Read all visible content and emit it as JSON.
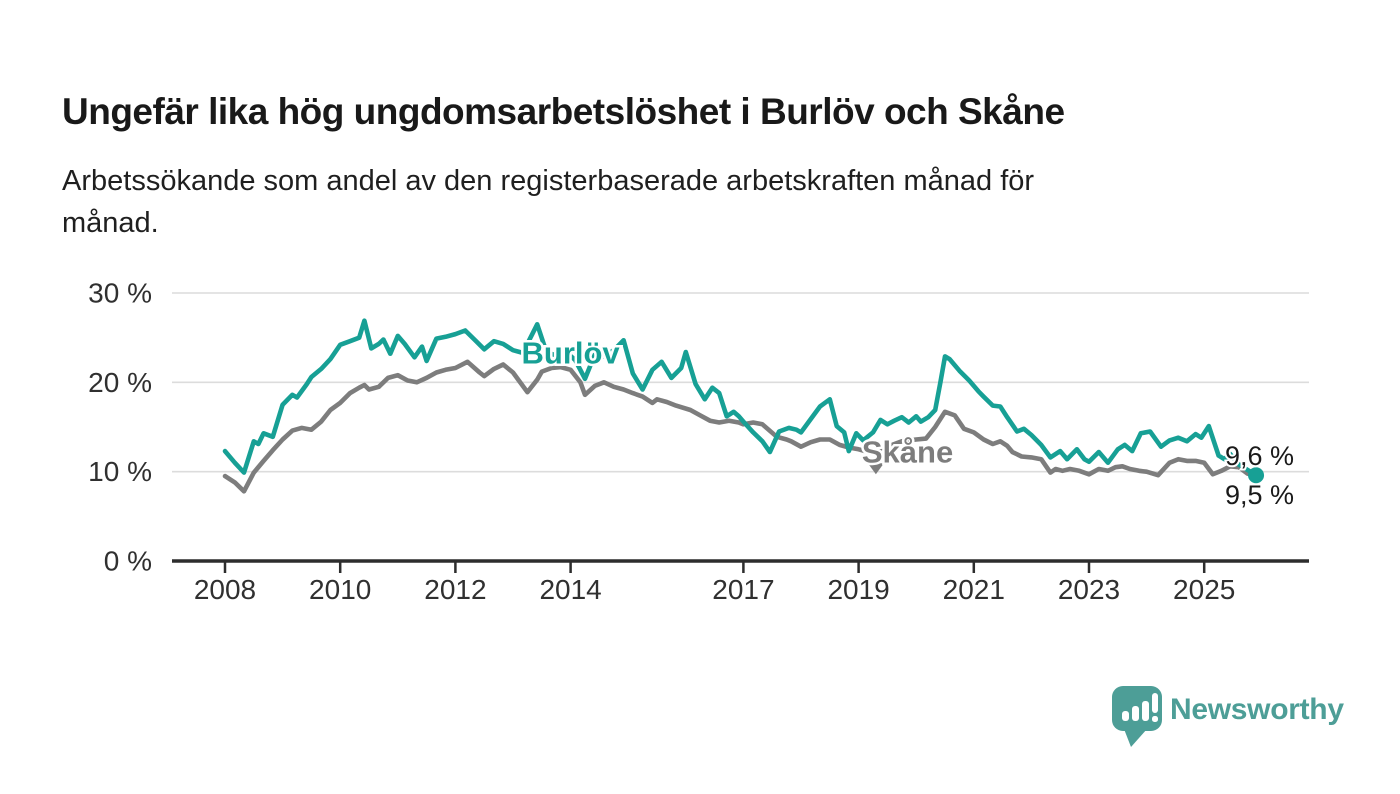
{
  "header": {
    "title": "Ungefär lika hög ungdomsarbetslöshet i Burlöv och Skåne",
    "subtitle_lines": [
      "Arbetssökande som andel av den registerbaserade arbetskraften månad för",
      "månad."
    ]
  },
  "chart_data": {
    "type": "line",
    "title": "Ungefär lika hög ungdomsarbetslöshet i Burlöv och Skåne",
    "subtitle": "Arbetssökande som andel av den registerbaserade arbetskraften månad för månad.",
    "unit": "%",
    "grid": "horizontal",
    "x_axis": {
      "ticks": [
        2008,
        2010,
        2012,
        2014,
        2017,
        2019,
        2021,
        2023,
        2025
      ],
      "range": [
        2007.1,
        2026.8
      ]
    },
    "y_axis": {
      "tick_labels": [
        "0 %",
        "10 %",
        "20 %",
        "30 %"
      ],
      "tick_values": [
        0,
        10,
        20,
        30
      ],
      "range": [
        0,
        30
      ]
    },
    "colors": {
      "burlov": "#17a095",
      "skane": "#7d7d7d",
      "axis": "#2d2d2d",
      "gridline": "#dcdcdc",
      "tick_text": "#303030",
      "end_label_text": "#1a1a1a"
    },
    "series": [
      {
        "id": "skane",
        "name": "Skåne",
        "color": "#7d7d7d",
        "label": {
          "text": "Skåne",
          "x": 2019.85,
          "y": 12.2
        },
        "pointer": {
          "x": 2019.3,
          "y": 10.5
        },
        "end_label": {
          "text": "9,5 %",
          "side": "below"
        },
        "end_marker": false,
        "points": [
          [
            2008.0,
            9.5
          ],
          [
            2008.17,
            8.8
          ],
          [
            2008.33,
            7.8
          ],
          [
            2008.5,
            9.9
          ],
          [
            2008.67,
            11.2
          ],
          [
            2008.83,
            12.4
          ],
          [
            2009.0,
            13.6
          ],
          [
            2009.17,
            14.6
          ],
          [
            2009.33,
            14.9
          ],
          [
            2009.5,
            14.7
          ],
          [
            2009.67,
            15.6
          ],
          [
            2009.83,
            16.9
          ],
          [
            2010.0,
            17.7
          ],
          [
            2010.17,
            18.8
          ],
          [
            2010.33,
            19.4
          ],
          [
            2010.42,
            19.7
          ],
          [
            2010.5,
            19.2
          ],
          [
            2010.67,
            19.5
          ],
          [
            2010.83,
            20.5
          ],
          [
            2011.0,
            20.8
          ],
          [
            2011.17,
            20.2
          ],
          [
            2011.33,
            20.0
          ],
          [
            2011.5,
            20.5
          ],
          [
            2011.67,
            21.1
          ],
          [
            2011.83,
            21.4
          ],
          [
            2012.0,
            21.6
          ],
          [
            2012.21,
            22.3
          ],
          [
            2012.42,
            21.1
          ],
          [
            2012.5,
            20.7
          ],
          [
            2012.67,
            21.5
          ],
          [
            2012.83,
            22.0
          ],
          [
            2013.0,
            21.1
          ],
          [
            2013.25,
            18.9
          ],
          [
            2013.42,
            20.3
          ],
          [
            2013.5,
            21.2
          ],
          [
            2013.67,
            21.6
          ],
          [
            2013.83,
            21.7
          ],
          [
            2014.0,
            21.4
          ],
          [
            2014.17,
            20.0
          ],
          [
            2014.25,
            18.6
          ],
          [
            2014.42,
            19.6
          ],
          [
            2014.58,
            20.0
          ],
          [
            2014.75,
            19.5
          ],
          [
            2014.92,
            19.2
          ],
          [
            2015.08,
            18.8
          ],
          [
            2015.25,
            18.4
          ],
          [
            2015.42,
            17.7
          ],
          [
            2015.5,
            18.1
          ],
          [
            2015.67,
            17.8
          ],
          [
            2015.83,
            17.4
          ],
          [
            2016.08,
            16.9
          ],
          [
            2016.25,
            16.3
          ],
          [
            2016.42,
            15.7
          ],
          [
            2016.58,
            15.5
          ],
          [
            2016.75,
            15.7
          ],
          [
            2016.92,
            15.5
          ],
          [
            2017.0,
            15.3
          ],
          [
            2017.17,
            15.5
          ],
          [
            2017.33,
            15.3
          ],
          [
            2017.58,
            13.9
          ],
          [
            2017.75,
            13.6
          ],
          [
            2017.83,
            13.4
          ],
          [
            2018.0,
            12.8
          ],
          [
            2018.17,
            13.3
          ],
          [
            2018.33,
            13.6
          ],
          [
            2018.5,
            13.6
          ],
          [
            2018.67,
            13.0
          ],
          [
            2018.83,
            12.7
          ],
          [
            2019.0,
            12.5
          ],
          [
            2019.17,
            12.2
          ],
          [
            2019.33,
            12.5
          ],
          [
            2019.5,
            12.8
          ],
          [
            2019.75,
            13.4
          ],
          [
            2020.0,
            13.6
          ],
          [
            2020.17,
            13.7
          ],
          [
            2020.33,
            15.0
          ],
          [
            2020.5,
            16.7
          ],
          [
            2020.67,
            16.3
          ],
          [
            2020.83,
            14.8
          ],
          [
            2021.0,
            14.4
          ],
          [
            2021.17,
            13.6
          ],
          [
            2021.33,
            13.1
          ],
          [
            2021.46,
            13.4
          ],
          [
            2021.58,
            12.9
          ],
          [
            2021.67,
            12.2
          ],
          [
            2021.83,
            11.7
          ],
          [
            2022.0,
            11.6
          ],
          [
            2022.17,
            11.4
          ],
          [
            2022.33,
            9.9
          ],
          [
            2022.42,
            10.3
          ],
          [
            2022.54,
            10.1
          ],
          [
            2022.67,
            10.3
          ],
          [
            2022.83,
            10.1
          ],
          [
            2023.0,
            9.7
          ],
          [
            2023.17,
            10.3
          ],
          [
            2023.33,
            10.1
          ],
          [
            2023.46,
            10.5
          ],
          [
            2023.58,
            10.6
          ],
          [
            2023.71,
            10.3
          ],
          [
            2023.87,
            10.1
          ],
          [
            2024.0,
            10.0
          ],
          [
            2024.2,
            9.6
          ],
          [
            2024.4,
            11.0
          ],
          [
            2024.55,
            11.4
          ],
          [
            2024.7,
            11.2
          ],
          [
            2024.85,
            11.2
          ],
          [
            2025.0,
            11.0
          ],
          [
            2025.15,
            9.7
          ],
          [
            2025.3,
            10.1
          ],
          [
            2025.45,
            10.6
          ],
          [
            2025.6,
            10.5
          ],
          [
            2025.75,
            9.8
          ],
          [
            2025.9,
            9.5
          ]
        ]
      },
      {
        "id": "burlov",
        "name": "Burlöv",
        "color": "#17a095",
        "label": {
          "text": "Burlöv",
          "x": 2014.0,
          "y": 23.3
        },
        "pointer": null,
        "end_label": {
          "text": "9,6 %",
          "side": "above"
        },
        "end_marker": true,
        "points": [
          [
            2008.0,
            12.3
          ],
          [
            2008.17,
            11.0
          ],
          [
            2008.33,
            9.9
          ],
          [
            2008.5,
            13.4
          ],
          [
            2008.58,
            13.1
          ],
          [
            2008.67,
            14.3
          ],
          [
            2008.83,
            13.9
          ],
          [
            2009.0,
            17.5
          ],
          [
            2009.17,
            18.6
          ],
          [
            2009.25,
            18.3
          ],
          [
            2009.42,
            19.8
          ],
          [
            2009.5,
            20.6
          ],
          [
            2009.67,
            21.5
          ],
          [
            2009.83,
            22.6
          ],
          [
            2010.0,
            24.2
          ],
          [
            2010.17,
            24.6
          ],
          [
            2010.33,
            25.0
          ],
          [
            2010.42,
            26.9
          ],
          [
            2010.54,
            23.8
          ],
          [
            2010.67,
            24.3
          ],
          [
            2010.75,
            24.8
          ],
          [
            2010.87,
            23.2
          ],
          [
            2011.0,
            25.2
          ],
          [
            2011.12,
            24.3
          ],
          [
            2011.29,
            22.8
          ],
          [
            2011.42,
            24.0
          ],
          [
            2011.5,
            22.4
          ],
          [
            2011.67,
            24.9
          ],
          [
            2011.83,
            25.1
          ],
          [
            2012.0,
            25.4
          ],
          [
            2012.17,
            25.8
          ],
          [
            2012.33,
            24.8
          ],
          [
            2012.5,
            23.7
          ],
          [
            2012.67,
            24.6
          ],
          [
            2012.83,
            24.3
          ],
          [
            2013.0,
            23.6
          ],
          [
            2013.17,
            23.3
          ],
          [
            2013.42,
            26.5
          ],
          [
            2013.58,
            23.4
          ],
          [
            2013.75,
            23.0
          ],
          [
            2013.92,
            23.4
          ],
          [
            2014.08,
            22.5
          ],
          [
            2014.25,
            20.4
          ],
          [
            2014.42,
            23.1
          ],
          [
            2014.58,
            22.9
          ],
          [
            2014.75,
            23.6
          ],
          [
            2014.92,
            24.7
          ],
          [
            2015.08,
            21.0
          ],
          [
            2015.25,
            19.2
          ],
          [
            2015.42,
            21.4
          ],
          [
            2015.58,
            22.3
          ],
          [
            2015.75,
            20.5
          ],
          [
            2015.92,
            21.6
          ],
          [
            2016.0,
            23.4
          ],
          [
            2016.17,
            19.8
          ],
          [
            2016.33,
            18.1
          ],
          [
            2016.46,
            19.4
          ],
          [
            2016.58,
            18.8
          ],
          [
            2016.71,
            16.2
          ],
          [
            2016.83,
            16.7
          ],
          [
            2016.92,
            16.2
          ],
          [
            2017.0,
            15.6
          ],
          [
            2017.17,
            14.4
          ],
          [
            2017.33,
            13.4
          ],
          [
            2017.46,
            12.2
          ],
          [
            2017.62,
            14.5
          ],
          [
            2017.79,
            14.9
          ],
          [
            2017.92,
            14.7
          ],
          [
            2018.0,
            14.4
          ],
          [
            2018.17,
            15.9
          ],
          [
            2018.33,
            17.3
          ],
          [
            2018.5,
            18.1
          ],
          [
            2018.62,
            15.1
          ],
          [
            2018.75,
            14.4
          ],
          [
            2018.83,
            12.3
          ],
          [
            2018.96,
            14.3
          ],
          [
            2019.08,
            13.5
          ],
          [
            2019.25,
            14.4
          ],
          [
            2019.38,
            15.8
          ],
          [
            2019.5,
            15.3
          ],
          [
            2019.62,
            15.7
          ],
          [
            2019.75,
            16.1
          ],
          [
            2019.87,
            15.5
          ],
          [
            2020.0,
            16.2
          ],
          [
            2020.08,
            15.6
          ],
          [
            2020.21,
            16.1
          ],
          [
            2020.33,
            16.9
          ],
          [
            2020.42,
            20.0
          ],
          [
            2020.5,
            22.9
          ],
          [
            2020.58,
            22.6
          ],
          [
            2020.75,
            21.3
          ],
          [
            2020.92,
            20.2
          ],
          [
            2021.08,
            19.0
          ],
          [
            2021.17,
            18.4
          ],
          [
            2021.33,
            17.4
          ],
          [
            2021.46,
            17.3
          ],
          [
            2021.58,
            16.1
          ],
          [
            2021.75,
            14.5
          ],
          [
            2021.87,
            14.8
          ],
          [
            2022.0,
            14.1
          ],
          [
            2022.17,
            13.0
          ],
          [
            2022.33,
            11.6
          ],
          [
            2022.5,
            12.3
          ],
          [
            2022.62,
            11.4
          ],
          [
            2022.79,
            12.5
          ],
          [
            2022.92,
            11.4
          ],
          [
            2023.0,
            11.1
          ],
          [
            2023.17,
            12.2
          ],
          [
            2023.33,
            11.0
          ],
          [
            2023.5,
            12.5
          ],
          [
            2023.62,
            13.0
          ],
          [
            2023.75,
            12.3
          ],
          [
            2023.9,
            14.3
          ],
          [
            2024.06,
            14.5
          ],
          [
            2024.25,
            12.8
          ],
          [
            2024.4,
            13.5
          ],
          [
            2024.55,
            13.8
          ],
          [
            2024.7,
            13.4
          ],
          [
            2024.85,
            14.2
          ],
          [
            2024.95,
            13.8
          ],
          [
            2025.08,
            15.1
          ],
          [
            2025.25,
            11.8
          ],
          [
            2025.35,
            11.4
          ],
          [
            2025.45,
            12.0
          ],
          [
            2025.6,
            10.8
          ],
          [
            2025.9,
            9.6
          ]
        ]
      }
    ],
    "end_values": {
      "burlov": "9,6 %",
      "skane": "9,5 %"
    }
  },
  "footer": {
    "brand": "Newsworthy",
    "logo_color": "#4d9e97"
  }
}
